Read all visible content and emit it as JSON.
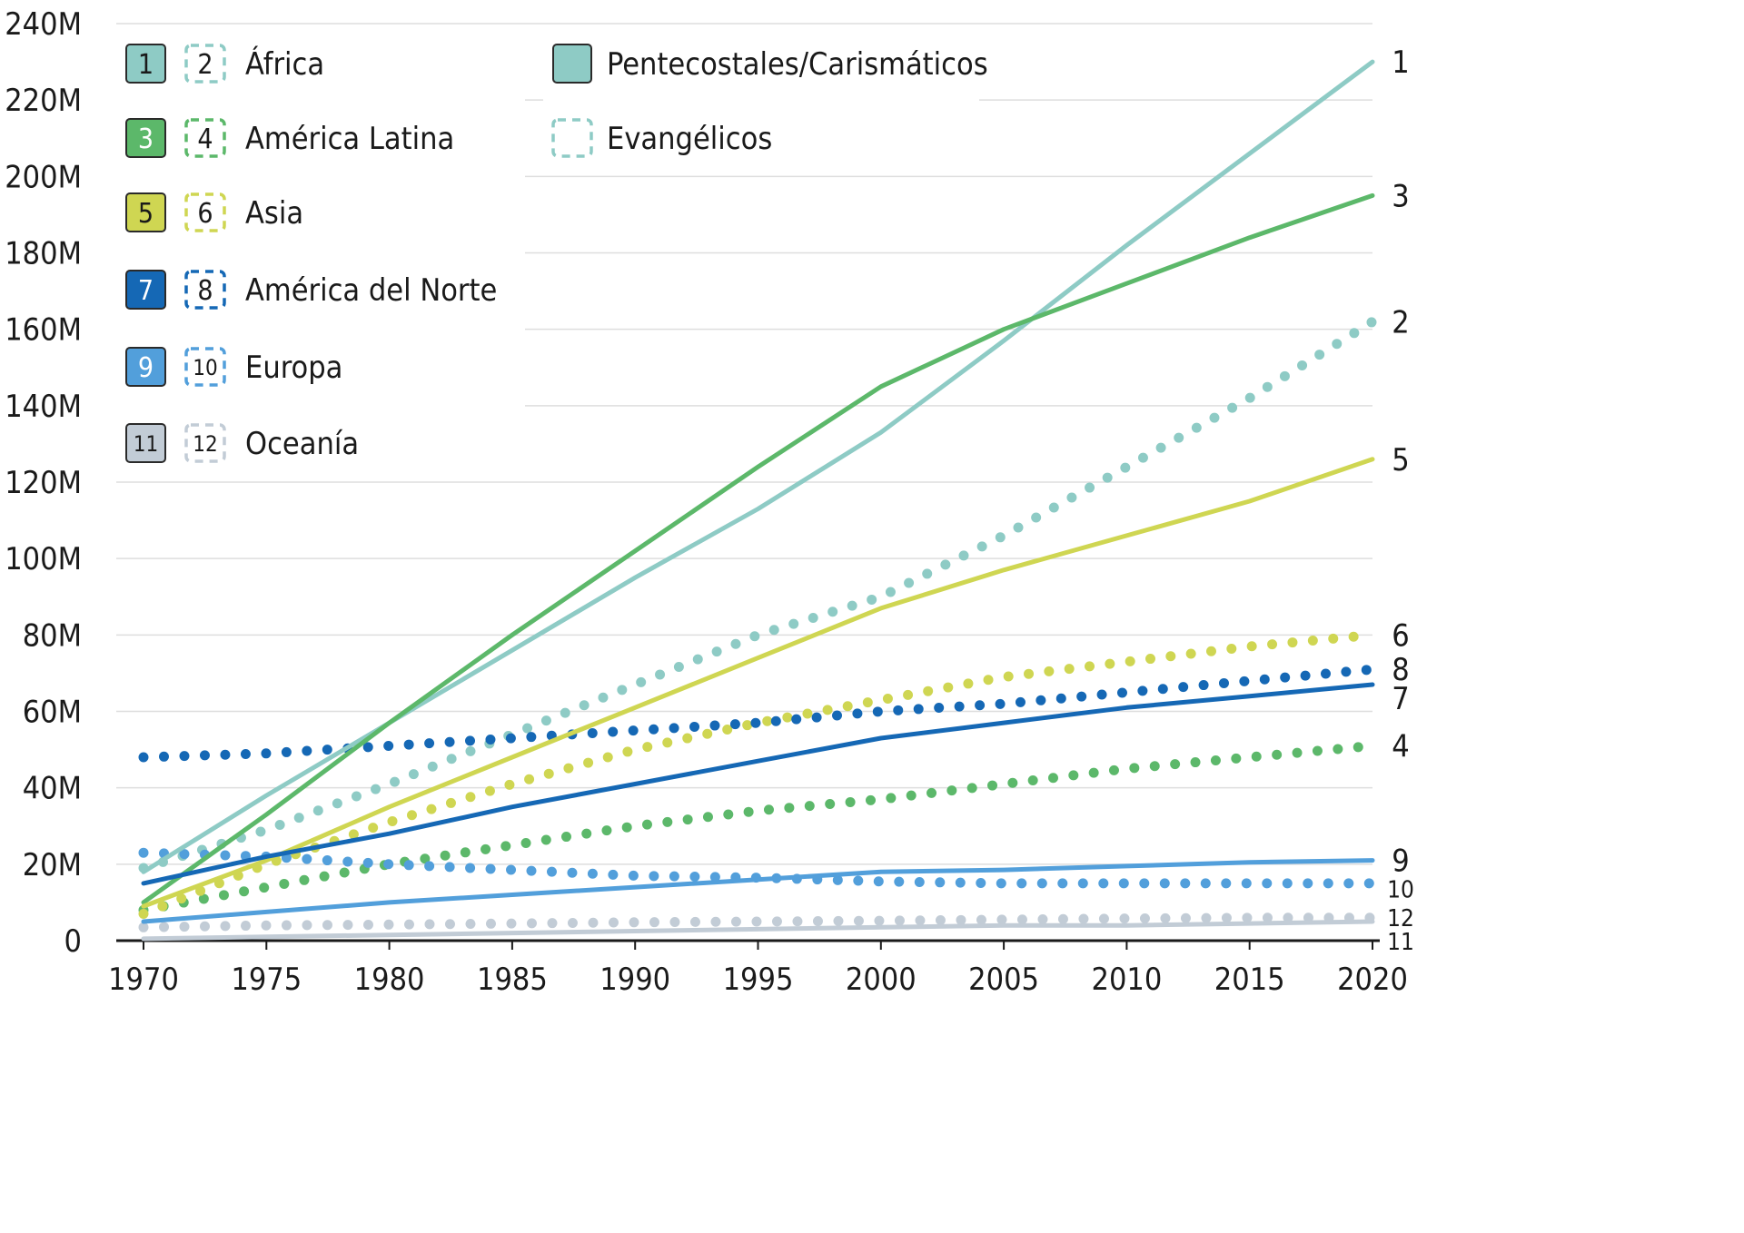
{
  "chart_data": {
    "type": "line",
    "x": [
      1970,
      1975,
      1980,
      1985,
      1990,
      1995,
      2000,
      2005,
      2010,
      2015,
      2020
    ],
    "xlim": [
      1970,
      2020
    ],
    "ylim": [
      0,
      240000000
    ],
    "y_ticks": [
      {
        "value": 0,
        "label": "0"
      },
      {
        "value": 20000000,
        "label": "20M"
      },
      {
        "value": 40000000,
        "label": "40M"
      },
      {
        "value": 60000000,
        "label": "60M"
      },
      {
        "value": 80000000,
        "label": "80M"
      },
      {
        "value": 100000000,
        "label": "100M"
      },
      {
        "value": 120000000,
        "label": "120M"
      },
      {
        "value": 140000000,
        "label": "140M"
      },
      {
        "value": 160000000,
        "label": "160M"
      },
      {
        "value": 180000000,
        "label": "180M"
      },
      {
        "value": 200000000,
        "label": "200M"
      },
      {
        "value": 220000000,
        "label": "220M"
      },
      {
        "value": 240000000,
        "label": "240M"
      }
    ],
    "x_ticks": [
      "1970",
      "1975",
      "1980",
      "1985",
      "1990",
      "1995",
      "2000",
      "2005",
      "2010",
      "2015",
      "2020"
    ],
    "grid": "horizontal",
    "legend": {
      "placement": "top-left",
      "regions": [
        {
          "solid_id": "1",
          "dotted_id": "2",
          "label": "África",
          "color": "#8ecbc5",
          "solid_text": "#1a1a1a"
        },
        {
          "solid_id": "3",
          "dotted_id": "4",
          "label": "América Latina",
          "color": "#5cb86a",
          "solid_text": "#ffffff"
        },
        {
          "solid_id": "5",
          "dotted_id": "6",
          "label": "Asia",
          "color": "#cfd652",
          "solid_text": "#1a1a1a"
        },
        {
          "solid_id": "7",
          "dotted_id": "8",
          "label": "América del Norte",
          "color": "#1568b5",
          "solid_text": "#ffffff"
        },
        {
          "solid_id": "9",
          "dotted_id": "10",
          "label": "Europa",
          "color": "#529fdb",
          "solid_text": "#ffffff"
        },
        {
          "solid_id": "11",
          "dotted_id": "12",
          "label": "Oceanía",
          "color": "#c2ccd6",
          "solid_text": "#1a1a1a"
        }
      ],
      "styles": [
        {
          "style": "solid",
          "label": "Pentecostales/Carismáticos",
          "color": "#8ecbc5"
        },
        {
          "style": "dotted",
          "label": "Evangélicos",
          "color": "#8ecbc5"
        }
      ]
    },
    "series": [
      {
        "id": "1",
        "region": "África",
        "group": "Pentecostales/Carismáticos",
        "style": "solid",
        "color": "#8ecbc5",
        "values": [
          18000000,
          38000000,
          57000000,
          76000000,
          95000000,
          113000000,
          133000000,
          157000000,
          182000000,
          206000000,
          230000000
        ]
      },
      {
        "id": "2",
        "region": "África",
        "group": "Evangélicos",
        "style": "dotted",
        "color": "#8ecbc5",
        "values": [
          19000000,
          29000000,
          41000000,
          54000000,
          67000000,
          80000000,
          90000000,
          106000000,
          124000000,
          142000000,
          162000000
        ]
      },
      {
        "id": "3",
        "region": "América Latina",
        "group": "Pentecostales/Carismáticos",
        "style": "solid",
        "color": "#5cb86a",
        "values": [
          10000000,
          33000000,
          57000000,
          80000000,
          102000000,
          124000000,
          145000000,
          160000000,
          172000000,
          184000000,
          195000000
        ]
      },
      {
        "id": "4",
        "region": "América Latina",
        "group": "Evangélicos",
        "style": "dotted",
        "color": "#5cb86a",
        "values": [
          8000000,
          14000000,
          20000000,
          25000000,
          30000000,
          34000000,
          37000000,
          41000000,
          45000000,
          48000000,
          51000000
        ]
      },
      {
        "id": "5",
        "region": "Asia",
        "group": "Pentecostales/Carismáticos",
        "style": "solid",
        "color": "#cfd652",
        "values": [
          9000000,
          21000000,
          35000000,
          48000000,
          61000000,
          74000000,
          87000000,
          97000000,
          106000000,
          115000000,
          126000000
        ]
      },
      {
        "id": "6",
        "region": "Asia",
        "group": "Evangélicos",
        "style": "dotted",
        "color": "#cfd652",
        "values": [
          7000000,
          20000000,
          31000000,
          41000000,
          50000000,
          57000000,
          63000000,
          69000000,
          73000000,
          77000000,
          80000000
        ]
      },
      {
        "id": "7",
        "region": "América del Norte",
        "group": "Pentecostales/Carismáticos",
        "style": "solid",
        "color": "#1568b5",
        "values": [
          15000000,
          22000000,
          28000000,
          35000000,
          41000000,
          47000000,
          53000000,
          57000000,
          61000000,
          64000000,
          67000000
        ]
      },
      {
        "id": "8",
        "region": "América del Norte",
        "group": "Evangélicos",
        "style": "dotted",
        "color": "#1568b5",
        "values": [
          48000000,
          49000000,
          51000000,
          53000000,
          55000000,
          57000000,
          60000000,
          62000000,
          65000000,
          68000000,
          71000000
        ]
      },
      {
        "id": "9",
        "region": "Europa",
        "group": "Pentecostales/Carismáticos",
        "style": "solid",
        "color": "#529fdb",
        "values": [
          5000000,
          7500000,
          10000000,
          12000000,
          14000000,
          16000000,
          18000000,
          18500000,
          19500000,
          20500000,
          21000000
        ]
      },
      {
        "id": "10",
        "region": "Europa",
        "group": "Evangélicos",
        "style": "dotted",
        "color": "#529fdb",
        "values": [
          23000000,
          22000000,
          20000000,
          18500000,
          17000000,
          16500000,
          15500000,
          15000000,
          15000000,
          15000000,
          15000000
        ]
      },
      {
        "id": "11",
        "region": "Oceanía",
        "group": "Pentecostales/Carismáticos",
        "style": "solid",
        "color": "#c2ccd6",
        "values": [
          500000,
          1000000,
          1500000,
          2000000,
          2500000,
          3000000,
          3500000,
          4000000,
          4000000,
          4500000,
          5000000
        ]
      },
      {
        "id": "12",
        "region": "Oceanía",
        "group": "Evangélicos",
        "style": "dotted",
        "color": "#c2ccd6",
        "values": [
          3500000,
          4000000,
          4200000,
          4500000,
          4800000,
          5000000,
          5200000,
          5500000,
          5800000,
          6000000,
          6000000
        ]
      }
    ]
  }
}
